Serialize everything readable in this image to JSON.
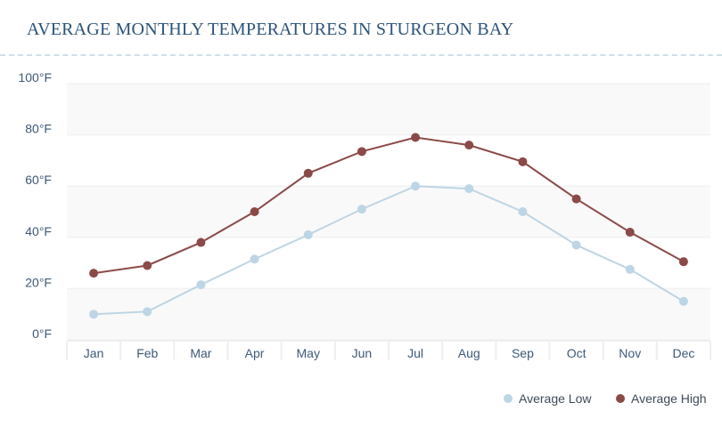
{
  "chart_data": {
    "type": "line",
    "title": "AVERAGE MONTHLY TEMPERATURES IN STURGEON BAY",
    "categories": [
      "Jan",
      "Feb",
      "Mar",
      "Apr",
      "May",
      "Jun",
      "Jul",
      "Aug",
      "Sep",
      "Oct",
      "Nov",
      "Dec"
    ],
    "y_ticks": [
      "0°F",
      "20°F",
      "40°F",
      "60°F",
      "80°F",
      "100°F"
    ],
    "ylim": [
      0,
      100
    ],
    "grid": true,
    "legend_position": "bottom-right",
    "series": [
      {
        "name": "Average Low",
        "color": "#bdd5e4",
        "values": [
          10,
          11,
          21.5,
          31.5,
          41,
          51,
          60,
          59,
          50,
          37,
          27.5,
          15
        ]
      },
      {
        "name": "Average High",
        "color": "#8b4a47",
        "values": [
          26,
          29,
          38,
          50,
          65,
          73.5,
          79,
          76,
          69.5,
          55,
          42,
          30.5
        ]
      }
    ]
  }
}
